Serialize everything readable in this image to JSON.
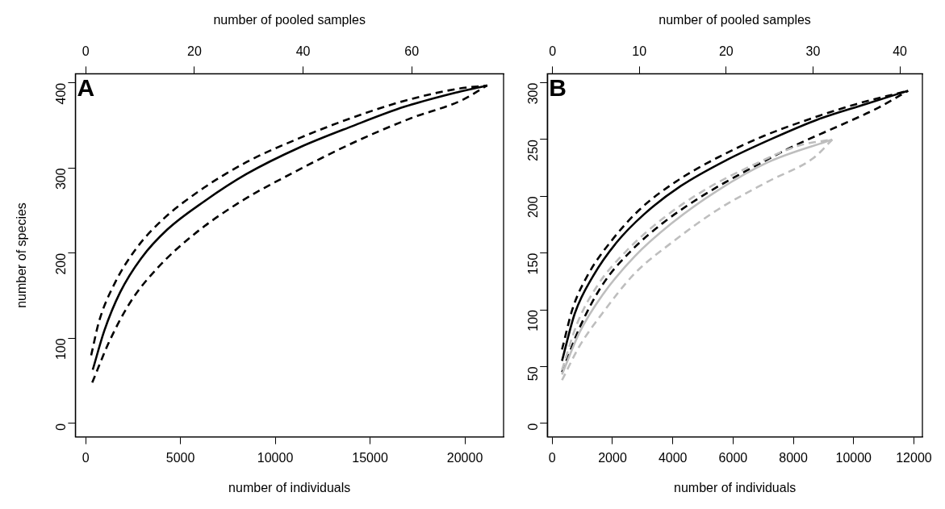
{
  "chart_data": [
    {
      "type": "line",
      "xlabel": "number of individuals",
      "ylabel": "number of species",
      "x2label": "number of pooled samples",
      "annotations": [
        "A"
      ],
      "grid": false,
      "legend": false,
      "marker": "none",
      "xlim": [
        -540,
        22040
      ],
      "xticks": [
        0,
        5000,
        10000,
        15000,
        20000
      ],
      "x2lim": [
        -1.92,
        76.92
      ],
      "x2ticks": [
        0,
        20,
        40,
        60
      ],
      "ylim": [
        -15.8,
        410.8
      ],
      "yticks": [
        0,
        100,
        200,
        300,
        400
      ],
      "series": [
        {
          "color": "#000000",
          "line_style": "solid",
          "x": [
            376,
            987,
            1820,
            2931,
            4320,
            6264,
            8485,
            11262,
            14039,
            16816,
            19593,
            21176
          ],
          "values": [
            63,
            109,
            154,
            194,
            228,
            261,
            293,
            324,
            349,
            372,
            389,
            397
          ]
        },
        {
          "color": "#000000",
          "line_style": "dashed",
          "x": [
            293,
            710,
            1543,
            2654,
            4042,
            5986,
            8485,
            11262,
            14039,
            16816,
            19593,
            21176
          ],
          "values": [
            80,
            120,
            165,
            205,
            239,
            273,
            307,
            335,
            359,
            379,
            393,
            397
          ]
        },
        {
          "color": "#000000",
          "line_style": "dashed",
          "x": [
            349,
            1265,
            2376,
            3765,
            5709,
            8208,
            10985,
            14039,
            17093,
            19871,
            21176
          ],
          "values": [
            48,
            97,
            143,
            182,
            222,
            261,
            295,
            329,
            358,
            380,
            397
          ]
        }
      ]
    },
    {
      "type": "line",
      "xlabel": "number of individuals",
      "x2label": "number of pooled samples",
      "annotations": [
        "B"
      ],
      "grid": false,
      "legend": false,
      "marker": "none",
      "xlim": [
        -163,
        12282
      ],
      "xticks": [
        0,
        2000,
        4000,
        6000,
        8000,
        10000,
        12000
      ],
      "x2lim": [
        -0.6,
        42.6
      ],
      "x2ticks": [
        0,
        10,
        20,
        30,
        40
      ],
      "ylim": [
        -12,
        308
      ],
      "yticks": [
        0,
        50,
        100,
        150,
        200,
        250,
        300
      ],
      "series": [
        {
          "color": "#bebebe",
          "line_style": "solid",
          "x": [
            325,
            904,
            1667,
            2735,
            3955,
            5480,
            7157,
            9292
          ],
          "values": [
            43,
            80,
            113,
            147,
            176,
            205,
            230,
            250
          ]
        },
        {
          "color": "#bebebe",
          "line_style": "dashed",
          "x": [
            325,
            828,
            1515,
            2430,
            3650,
            5022,
            6700,
            8225,
            9292
          ],
          "values": [
            47,
            88,
            122,
            151,
            180,
            205,
            228,
            245,
            250
          ]
        },
        {
          "color": "#bebebe",
          "line_style": "dashed",
          "x": [
            325,
            904,
            1667,
            2735,
            3955,
            5480,
            7157,
            8682,
            9292
          ],
          "values": [
            38,
            68,
            97,
            132,
            159,
            188,
            213,
            234,
            250
          ]
        },
        {
          "color": "#000000",
          "line_style": "solid",
          "x": [
            325,
            752,
            1362,
            2125,
            3040,
            4262,
            5787,
            7312,
            8838,
            10362,
            11808
          ],
          "values": [
            55,
            97,
            130,
            159,
            184,
            209,
            232,
            251,
            268,
            281,
            293
          ]
        },
        {
          "color": "#000000",
          "line_style": "dashed",
          "x": [
            325,
            676,
            1210,
            1972,
            2887,
            4107,
            5480,
            7005,
            8530,
            10055,
            11808
          ],
          "values": [
            65,
            101,
            132,
            161,
            188,
            213,
            234,
            253,
            268,
            281,
            293
          ]
        },
        {
          "color": "#000000",
          "line_style": "dashed",
          "x": [
            325,
            904,
            1667,
            2582,
            3650,
            5022,
            6547,
            8072,
            9597,
            10817,
            11808
          ],
          "values": [
            45,
            84,
            122,
            151,
            176,
            201,
            224,
            245,
            263,
            278,
            293
          ]
        }
      ]
    }
  ]
}
